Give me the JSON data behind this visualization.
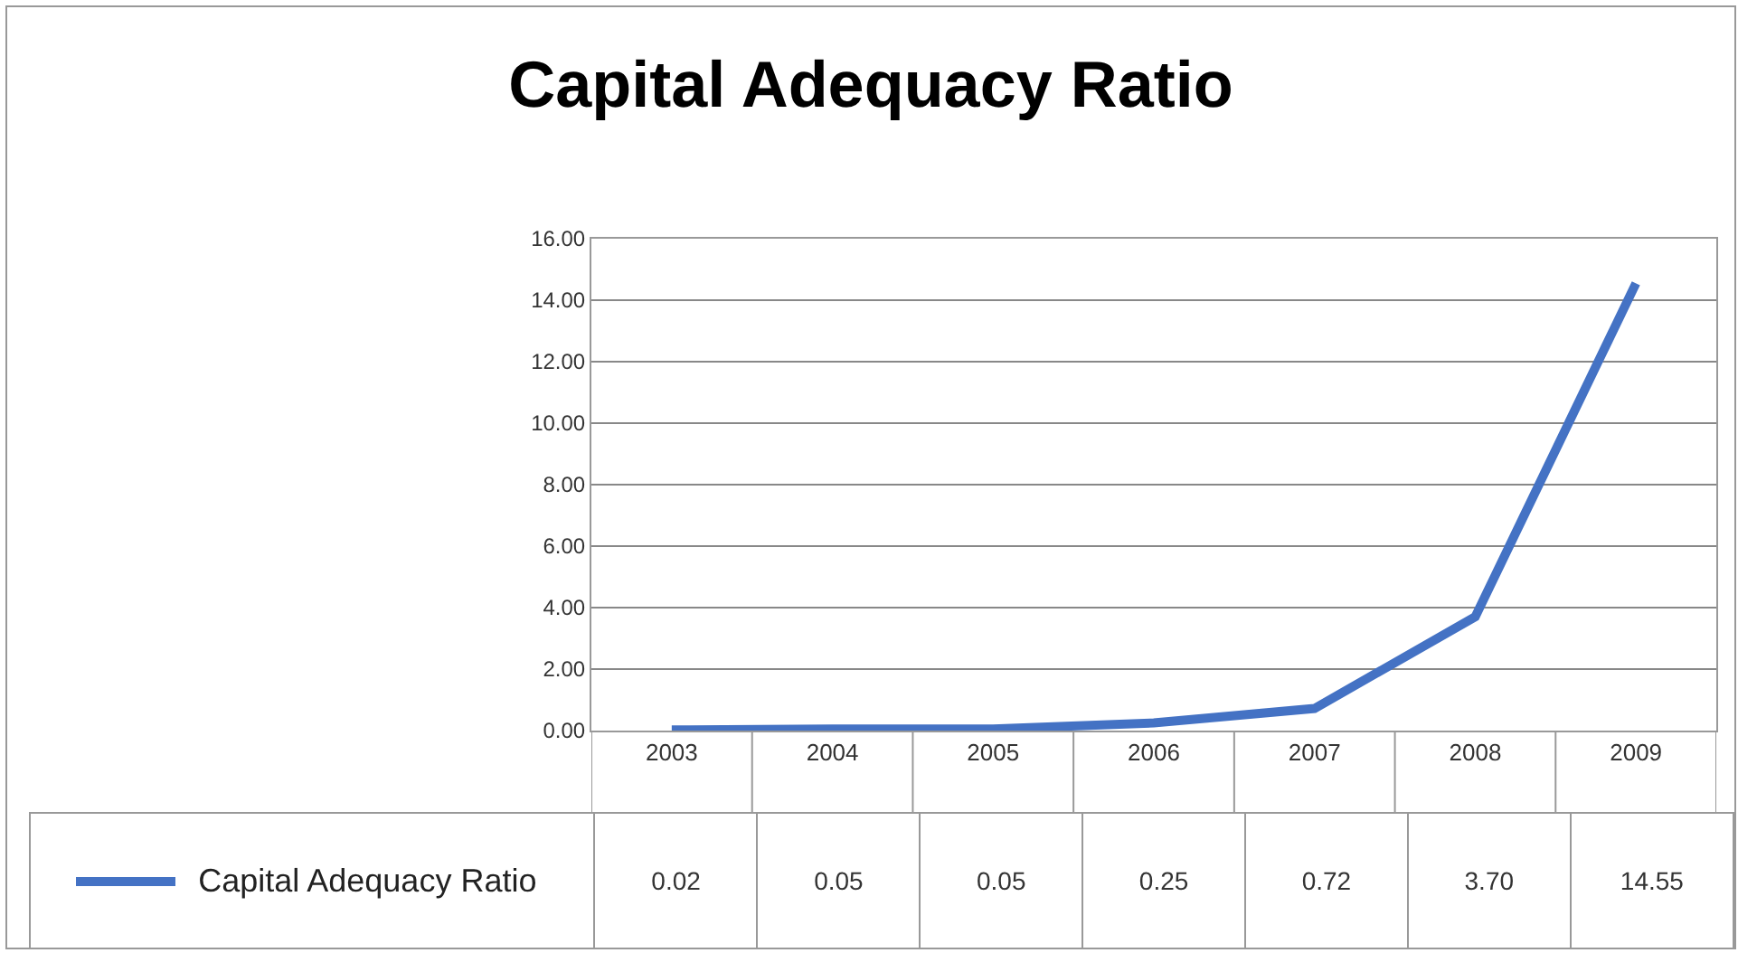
{
  "chart_data": {
    "type": "line",
    "title": "Capital Adequacy Ratio",
    "categories": [
      "2003",
      "2004",
      "2005",
      "2006",
      "2007",
      "2008",
      "2009"
    ],
    "series": [
      {
        "name": "Capital Adequacy Ratio",
        "color": "#4472c4",
        "values": [
          0.02,
          0.05,
          0.05,
          0.25,
          0.72,
          3.7,
          14.55
        ]
      }
    ],
    "value_labels": [
      "0.02",
      "0.05",
      "0.05",
      "0.25",
      "0.72",
      "3.70",
      "14.55"
    ],
    "ylim": [
      0,
      16
    ],
    "yticks": [
      {
        "value": 0,
        "label": "0.00"
      },
      {
        "value": 2,
        "label": "2.00"
      },
      {
        "value": 4,
        "label": "4.00"
      },
      {
        "value": 6,
        "label": "6.00"
      },
      {
        "value": 8,
        "label": "8.00"
      },
      {
        "value": 10,
        "label": "10.00"
      },
      {
        "value": 12,
        "label": "12.00"
      },
      {
        "value": 14,
        "label": "14.00"
      },
      {
        "value": 16,
        "label": "16.00"
      }
    ],
    "grid": "y",
    "legend": "bottom left",
    "marker": "none",
    "line_style": "solid"
  }
}
